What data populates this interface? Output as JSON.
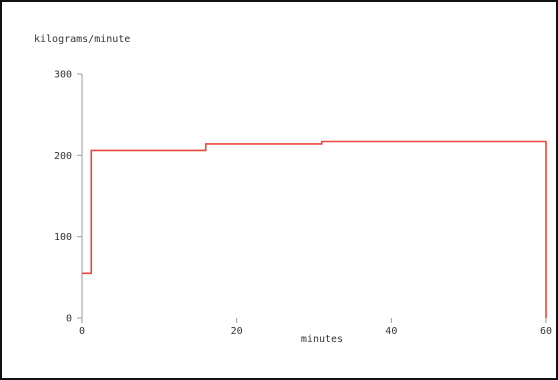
{
  "chart_data": {
    "type": "line",
    "step": true,
    "title": "",
    "ylabel": "kilograms/minute",
    "xlabel": "minutes",
    "xlim": [
      0,
      60
    ],
    "ylim": [
      0,
      300
    ],
    "xticks": [
      0,
      20,
      40,
      60
    ],
    "yticks": [
      0,
      100,
      200,
      300
    ],
    "grid": false,
    "legend": "none",
    "series": [
      {
        "color": "#e8473b",
        "x": [
          0,
          1.2,
          1.2,
          16,
          16,
          31,
          31,
          60,
          60
        ],
        "y": [
          55,
          55,
          206,
          206,
          214,
          214,
          217,
          217,
          0
        ]
      }
    ]
  }
}
